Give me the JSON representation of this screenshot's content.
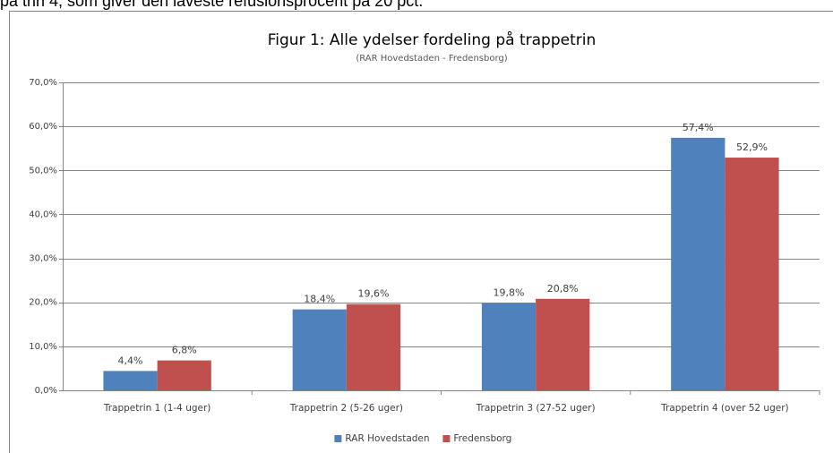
{
  "header": {
    "text": "på trin 4, som giver den laveste refusionsprocent på 20 pct."
  },
  "chart_data": {
    "type": "bar",
    "title": "Figur 1: Alle ydelser fordeling på trappetrin",
    "subtitle": "(RAR Hovedstaden - Fredensborg)",
    "categories": [
      "Trappetrin 1 (1-4 uger)",
      "Trappetrin 2 (5-26 uger)",
      "Trappetrin 3 (27-52 uger)",
      "Trappetrin 4 (over 52 uger)"
    ],
    "series": [
      {
        "name": "RAR Hovedstaden",
        "color": "#4f81bd",
        "values": [
          4.4,
          18.4,
          19.8,
          57.4
        ],
        "value_labels": [
          "4,4%",
          "18,4%",
          "19,8%",
          "57,4%"
        ]
      },
      {
        "name": "Fredensborg",
        "color": "#c0504d",
        "values": [
          6.8,
          19.6,
          20.8,
          52.9
        ],
        "value_labels": [
          "6,8%",
          "19,6%",
          "20,8%",
          "52,9%"
        ]
      }
    ],
    "ylim": [
      0,
      70
    ],
    "yticks": [
      {
        "value": 0,
        "label": "0,0%"
      },
      {
        "value": 10,
        "label": "10,0%"
      },
      {
        "value": 20,
        "label": "20,0%"
      },
      {
        "value": 30,
        "label": "30,0%"
      },
      {
        "value": 40,
        "label": "40,0%"
      },
      {
        "value": 50,
        "label": "50,0%"
      },
      {
        "value": 60,
        "label": "60,0%"
      },
      {
        "value": 70,
        "label": "70,0%"
      }
    ],
    "grid": true,
    "legend": "bottom"
  }
}
